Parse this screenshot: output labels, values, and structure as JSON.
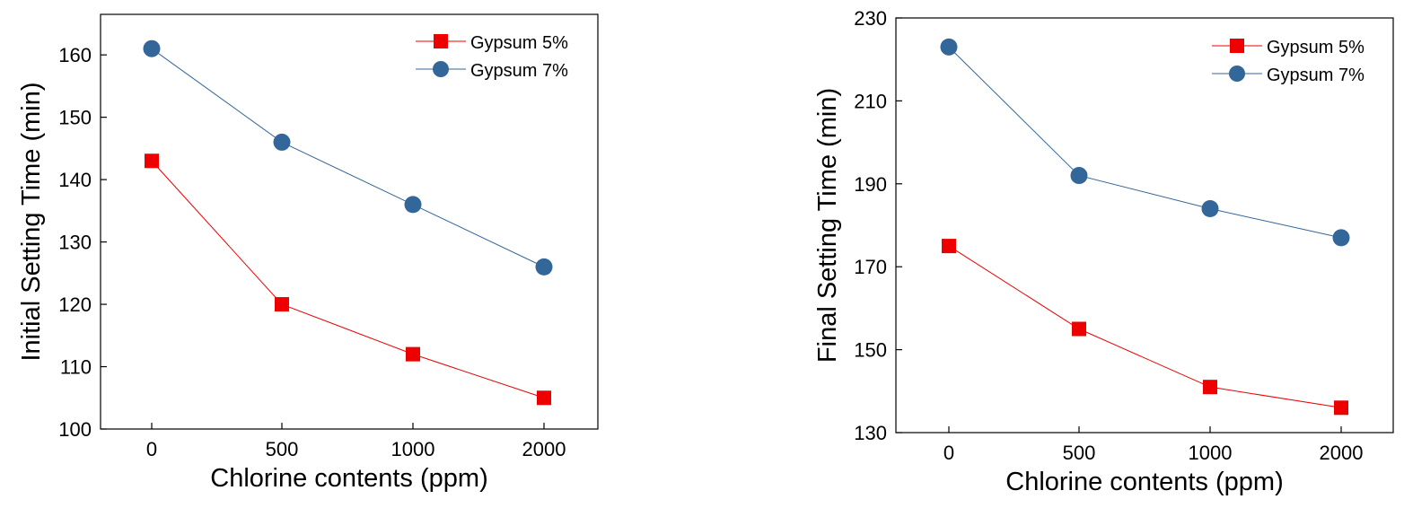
{
  "colors": {
    "red": "#ee0000",
    "blue": "#336699",
    "axis": "#000000",
    "background": "#ffffff"
  },
  "chart_data": [
    {
      "type": "line",
      "title": "",
      "xlabel": "Chlorine contents (ppm)",
      "ylabel": "Initial Setting Time (min)",
      "categories": [
        "0",
        "500",
        "1000",
        "2000"
      ],
      "ylim": [
        100,
        165
      ],
      "yticks": [
        100,
        110,
        120,
        130,
        140,
        150,
        160
      ],
      "grid": false,
      "legend_position": "top-right",
      "series": [
        {
          "name": "Gypsum 5%",
          "marker": "square",
          "color": "#ee0000",
          "values": [
            143,
            120,
            112,
            105
          ]
        },
        {
          "name": "Gypsum 7%",
          "marker": "circle",
          "color": "#336699",
          "values": [
            161,
            146,
            136,
            126
          ]
        }
      ]
    },
    {
      "type": "line",
      "title": "",
      "xlabel": "Chlorine contents (ppm)",
      "ylabel": "Final Setting Time (min)",
      "categories": [
        "0",
        "500",
        "1000",
        "2000"
      ],
      "ylim": [
        130,
        230
      ],
      "yticks": [
        130,
        150,
        170,
        190,
        210,
        230
      ],
      "grid": false,
      "legend_position": "top-right",
      "series": [
        {
          "name": "Gypsum 5%",
          "marker": "square",
          "color": "#ee0000",
          "values": [
            175,
            155,
            141,
            136
          ]
        },
        {
          "name": "Gypsum 7%",
          "marker": "circle",
          "color": "#336699",
          "values": [
            223,
            192,
            184,
            177
          ]
        }
      ]
    }
  ]
}
